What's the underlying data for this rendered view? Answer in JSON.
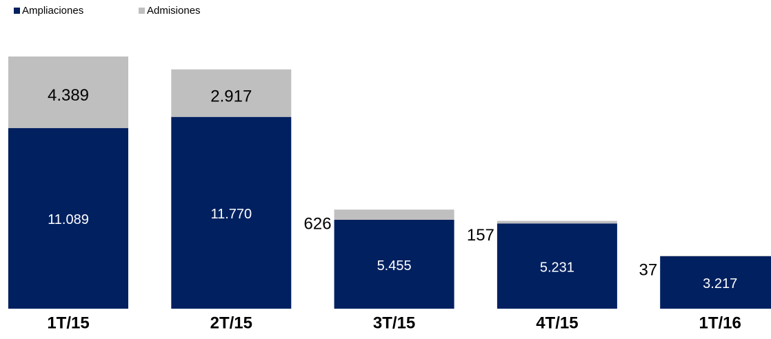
{
  "chart_data": {
    "type": "stacked-bar",
    "categories": [
      "1T/15",
      "2T/15",
      "3T/15",
      "4T/15",
      "1T/16"
    ],
    "series": [
      {
        "name": "Ampliaciones",
        "color": "#002060",
        "values": [
          11089,
          11770,
          5455,
          5231,
          3217
        ],
        "value_labels": [
          "11.089",
          "11.770",
          "5.455",
          "5.231",
          "3.217"
        ]
      },
      {
        "name": "Admisiones",
        "color": "#bfbfbf",
        "values": [
          4389,
          2917,
          626,
          157,
          37
        ],
        "value_labels": [
          "4.389",
          "2.917",
          "626",
          "157",
          "37"
        ]
      }
    ],
    "legend": "top-left"
  }
}
